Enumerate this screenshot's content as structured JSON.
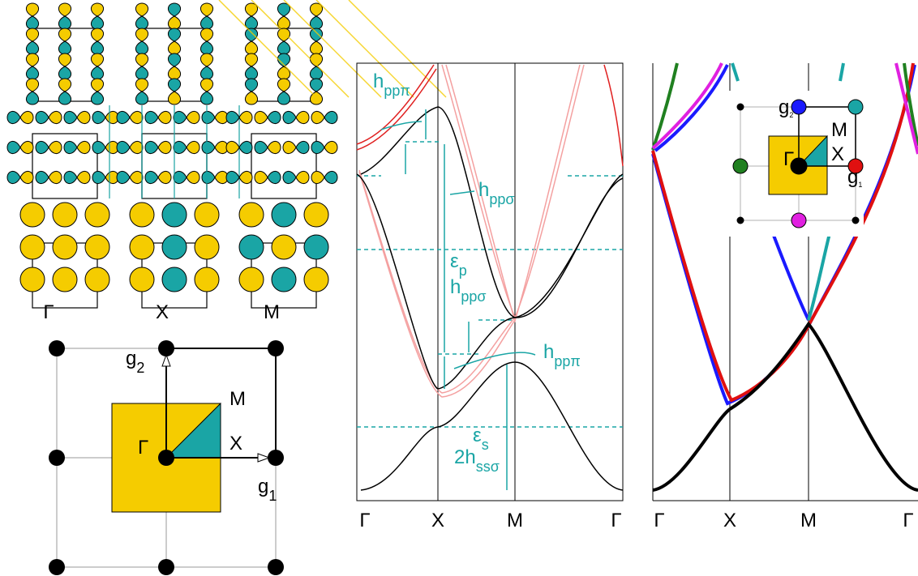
{
  "orbital_panel": {
    "labels": [
      "Γ",
      "X",
      "M"
    ]
  },
  "lattice": {
    "gamma": "Γ",
    "x": "X",
    "m": "M",
    "g1": {
      "base": "g",
      "sub": "1"
    },
    "g2": {
      "base": "g",
      "sub": "2"
    }
  },
  "band_plot": {
    "x_labels": [
      "Γ",
      "X",
      "M",
      "Γ"
    ],
    "annotations": [
      {
        "base": "h",
        "sub": "ppπ"
      },
      {
        "base": "h",
        "sub": "ppσ"
      },
      {
        "base": "ε",
        "sub": "p"
      },
      {
        "base": "h",
        "sub": "ppσ"
      },
      {
        "base": "h",
        "sub": "ppπ"
      },
      {
        "base": "ε",
        "sub": "s"
      },
      {
        "base": "2h",
        "sub": "ssσ"
      }
    ]
  },
  "free_electron_plot": {
    "x_labels": [
      "Γ",
      "X",
      "M",
      "Γ"
    ],
    "inset": {
      "g2": {
        "base": "g",
        "sub": "2"
      },
      "m": "M",
      "x": "X",
      "gamma": "Γ",
      "g1": {
        "base": "g",
        "sub": "1"
      }
    }
  }
}
